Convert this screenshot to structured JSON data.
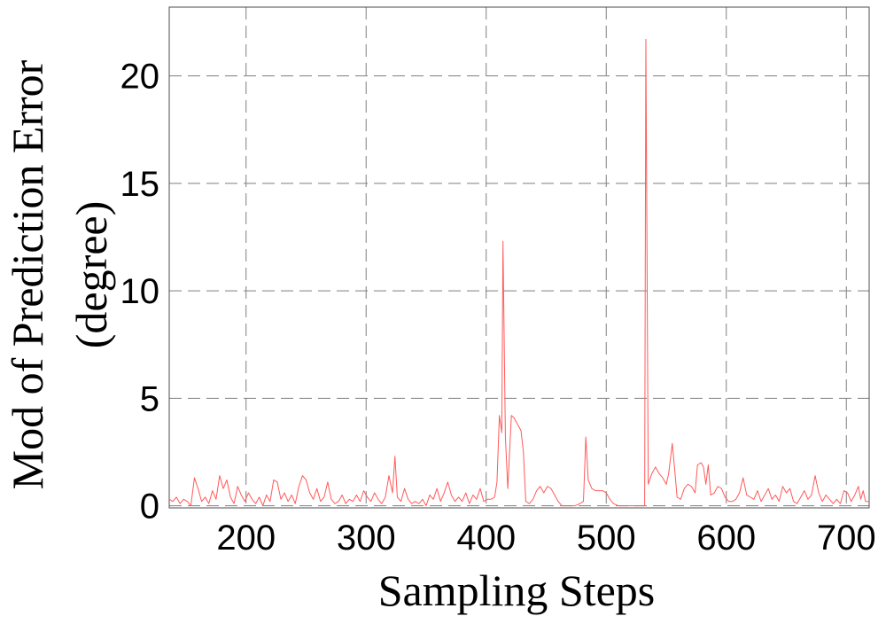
{
  "chart_data": {
    "type": "line",
    "title": "",
    "xlabel": "Sampling Steps",
    "ylabel": [
      "Mod of Prediction Error",
      "(degree)"
    ],
    "xlim": [
      136,
      719
    ],
    "ylim": [
      -0.1,
      23.2
    ],
    "xticks": [
      200,
      300,
      400,
      500,
      600,
      700
    ],
    "yticks": [
      0,
      5,
      10,
      15,
      20
    ],
    "grid": true,
    "legend": "none",
    "series": [
      {
        "color": "#ff5a5a",
        "points": [
          [
            136,
            0.3
          ],
          [
            139,
            0.2
          ],
          [
            142,
            0.4
          ],
          [
            145,
            0.1
          ],
          [
            148,
            0.3
          ],
          [
            151,
            0.2
          ],
          [
            154,
            0.0
          ],
          [
            157,
            1.3
          ],
          [
            160,
            0.8
          ],
          [
            163,
            0.2
          ],
          [
            166,
            0.4
          ],
          [
            169,
            0.1
          ],
          [
            172,
            0.7
          ],
          [
            175,
            0.3
          ],
          [
            178,
            1.4
          ],
          [
            181,
            0.8
          ],
          [
            184,
            1.2
          ],
          [
            187,
            0.4
          ],
          [
            190,
            0.1
          ],
          [
            193,
            0.9
          ],
          [
            196,
            0.5
          ],
          [
            199,
            0.2
          ],
          [
            202,
            0.6
          ],
          [
            205,
            0.3
          ],
          [
            208,
            0.1
          ],
          [
            211,
            0.4
          ],
          [
            214,
            0.0
          ],
          [
            217,
            0.5
          ],
          [
            220,
            0.2
          ],
          [
            223,
            1.2
          ],
          [
            226,
            1.1
          ],
          [
            229,
            0.3
          ],
          [
            232,
            0.6
          ],
          [
            235,
            0.2
          ],
          [
            238,
            0.5
          ],
          [
            241,
            0.1
          ],
          [
            244,
            0.9
          ],
          [
            247,
            1.4
          ],
          [
            250,
            1.2
          ],
          [
            253,
            0.6
          ],
          [
            256,
            0.3
          ],
          [
            259,
            0.8
          ],
          [
            262,
            0.2
          ],
          [
            265,
            0.4
          ],
          [
            268,
            1.1
          ],
          [
            271,
            0.3
          ],
          [
            274,
            0.1
          ],
          [
            277,
            0.2
          ],
          [
            280,
            0.5
          ],
          [
            283,
            0.1
          ],
          [
            286,
            0.3
          ],
          [
            289,
            0.2
          ],
          [
            292,
            0.5
          ],
          [
            295,
            0.2
          ],
          [
            298,
            0.7
          ],
          [
            301,
            0.4
          ],
          [
            304,
            0.2
          ],
          [
            307,
            0.6
          ],
          [
            310,
            0.3
          ],
          [
            313,
            0.1
          ],
          [
            316,
            0.4
          ],
          [
            319,
            1.4
          ],
          [
            322,
            0.6
          ],
          [
            324,
            2.3
          ],
          [
            326,
            0.4
          ],
          [
            329,
            0.2
          ],
          [
            332,
            0.8
          ],
          [
            335,
            0.3
          ],
          [
            338,
            0.1
          ],
          [
            341,
            0.2
          ],
          [
            344,
            0.1
          ],
          [
            347,
            0.3
          ],
          [
            350,
            0.0
          ],
          [
            353,
            0.5
          ],
          [
            356,
            0.3
          ],
          [
            359,
            0.8
          ],
          [
            362,
            0.2
          ],
          [
            365,
            0.6
          ],
          [
            368,
            1.1
          ],
          [
            371,
            0.5
          ],
          [
            374,
            0.2
          ],
          [
            377,
            0.4
          ],
          [
            380,
            0.2
          ],
          [
            383,
            0.6
          ],
          [
            386,
            0.1
          ],
          [
            389,
            0.5
          ],
          [
            392,
            0.3
          ],
          [
            395,
            0.8
          ],
          [
            398,
            0.2
          ],
          [
            401,
            0.3
          ],
          [
            404,
            0.3
          ],
          [
            407,
            0.4
          ],
          [
            409,
            1.1
          ],
          [
            411,
            4.2
          ],
          [
            413,
            3.4
          ],
          [
            414,
            12.3
          ],
          [
            416,
            3.2
          ],
          [
            418,
            0.8
          ],
          [
            421,
            4.2
          ],
          [
            423,
            4.1
          ],
          [
            426,
            3.8
          ],
          [
            429,
            3.5
          ],
          [
            431,
            2.5
          ],
          [
            433,
            0.2
          ],
          [
            436,
            0.1
          ],
          [
            439,
            0.3
          ],
          [
            442,
            0.7
          ],
          [
            445,
            0.9
          ],
          [
            448,
            0.6
          ],
          [
            451,
            0.9
          ],
          [
            454,
            0.8
          ],
          [
            457,
            0.5
          ],
          [
            460,
            0.2
          ],
          [
            463,
            0.0
          ],
          [
            466,
            0.0
          ],
          [
            470,
            0.0
          ],
          [
            474,
            0.0
          ],
          [
            478,
            0.1
          ],
          [
            481,
            0.2
          ],
          [
            483,
            3.2
          ],
          [
            485,
            1.2
          ],
          [
            488,
            0.8
          ],
          [
            491,
            0.7
          ],
          [
            494,
            0.7
          ],
          [
            497,
            0.7
          ],
          [
            500,
            0.6
          ],
          [
            503,
            0.3
          ],
          [
            506,
            0.1
          ],
          [
            510,
            0.0
          ],
          [
            515,
            0.0
          ],
          [
            520,
            0.0
          ],
          [
            525,
            0.0
          ],
          [
            530,
            0.0
          ],
          [
            532,
            0.0
          ],
          [
            533,
            21.7
          ],
          [
            535,
            1.0
          ],
          [
            538,
            1.5
          ],
          [
            541,
            1.8
          ],
          [
            544,
            1.5
          ],
          [
            547,
            1.3
          ],
          [
            550,
            1.0
          ],
          [
            552,
            1.5
          ],
          [
            555,
            2.9
          ],
          [
            557,
            1.7
          ],
          [
            559,
            0.4
          ],
          [
            562,
            0.3
          ],
          [
            565,
            0.8
          ],
          [
            568,
            1.0
          ],
          [
            571,
            0.9
          ],
          [
            574,
            0.6
          ],
          [
            576,
            1.9
          ],
          [
            579,
            2.0
          ],
          [
            581,
            1.8
          ],
          [
            583,
            1.0
          ],
          [
            585,
            1.9
          ],
          [
            587,
            0.5
          ],
          [
            590,
            0.6
          ],
          [
            593,
            0.9
          ],
          [
            596,
            0.8
          ],
          [
            599,
            0.4
          ],
          [
            602,
            0.2
          ],
          [
            605,
            0.2
          ],
          [
            608,
            0.3
          ],
          [
            611,
            0.6
          ],
          [
            614,
            1.3
          ],
          [
            617,
            0.5
          ],
          [
            620,
            0.4
          ],
          [
            623,
            0.3
          ],
          [
            626,
            0.7
          ],
          [
            629,
            0.2
          ],
          [
            632,
            0.5
          ],
          [
            635,
            0.8
          ],
          [
            638,
            0.3
          ],
          [
            641,
            0.5
          ],
          [
            644,
            0.2
          ],
          [
            647,
            0.9
          ],
          [
            650,
            0.6
          ],
          [
            653,
            0.8
          ],
          [
            656,
            0.2
          ],
          [
            659,
            0.1
          ],
          [
            662,
            0.4
          ],
          [
            665,
            0.7
          ],
          [
            668,
            0.3
          ],
          [
            671,
            0.5
          ],
          [
            674,
            1.4
          ],
          [
            677,
            0.6
          ],
          [
            680,
            0.2
          ],
          [
            683,
            0.5
          ],
          [
            686,
            0.3
          ],
          [
            689,
            0.1
          ],
          [
            692,
            0.3
          ],
          [
            695,
            0.1
          ],
          [
            698,
            0.7
          ],
          [
            701,
            0.6
          ],
          [
            704,
            0.2
          ],
          [
            707,
            0.5
          ],
          [
            710,
            0.9
          ],
          [
            712,
            0.3
          ],
          [
            714,
            0.7
          ],
          [
            716,
            0.2
          ],
          [
            719,
            0.2
          ]
        ]
      }
    ]
  }
}
